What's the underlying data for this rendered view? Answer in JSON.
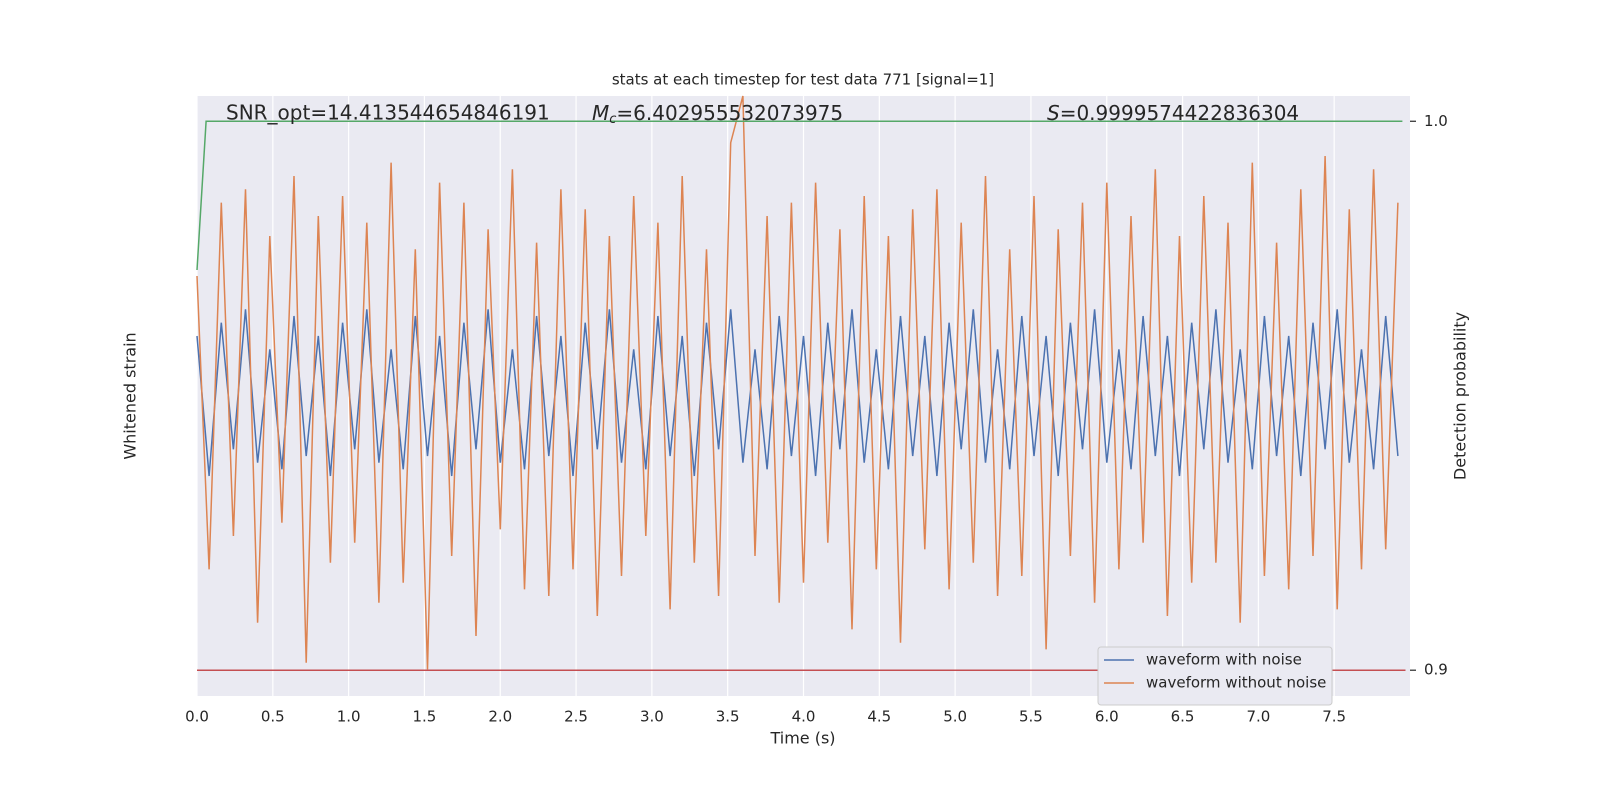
{
  "chart_data": {
    "type": "line",
    "title": "stats at each timestep for test data 771 [signal=1]",
    "xlabel": "Time (s)",
    "ylabel": "Whitened strain",
    "y2label": "Detection probability",
    "annotations": [
      {
        "text": "SNR_opt=14.413544654846191"
      },
      {
        "symbol": "M",
        "subscript": "c",
        "text": "=6.402955532073975"
      },
      {
        "symbol": "S",
        "text": "=0.9999574422836304"
      }
    ],
    "xlim": [
      0,
      8.0
    ],
    "xticks": [
      {
        "value": 0,
        "label": "0.0"
      },
      0.5,
      {
        "value": 1,
        "label": "1.0"
      },
      1.5,
      {
        "value": 2,
        "label": "2.0"
      },
      2.5,
      {
        "value": 3,
        "label": "3.0"
      },
      3.5,
      {
        "value": 4,
        "label": "4.0"
      },
      4.5,
      {
        "value": 5,
        "label": "5.0"
      },
      5.5,
      {
        "value": 6,
        "label": "6.0"
      },
      6.5,
      {
        "value": 7,
        "label": "7.0"
      },
      7.5
    ],
    "ylim": [
      -4.5,
      4.5
    ],
    "y2lim": [
      0.8953,
      1.0046
    ],
    "y2ticks": [
      0.9,
      {
        "value": 1,
        "label": "1.0"
      }
    ],
    "grid": true,
    "legend": "lower right",
    "x": [
      0,
      0.08,
      0.16,
      0.24,
      0.32,
      0.4,
      0.48,
      0.56,
      0.64,
      0.72,
      0.8,
      0.88,
      0.96,
      1.04,
      1.12,
      1.2,
      1.28,
      1.36,
      1.44,
      1.52,
      1.6,
      1.68,
      1.76,
      1.84,
      1.92,
      2.0,
      2.08,
      2.16,
      2.24,
      2.32,
      2.4,
      2.48,
      2.56,
      2.64,
      2.72,
      2.8,
      2.88,
      2.96,
      3.04,
      3.12,
      3.2,
      3.28,
      3.36,
      3.44,
      3.52,
      3.6,
      3.68,
      3.76,
      3.84,
      3.92,
      4.0,
      4.08,
      4.16,
      4.24,
      4.32,
      4.4,
      4.48,
      4.56,
      4.64,
      4.72,
      4.8,
      4.88,
      4.96,
      5.04,
      5.12,
      5.2,
      5.28,
      5.36,
      5.44,
      5.52,
      5.6,
      5.68,
      5.76,
      5.84,
      5.92,
      6.0,
      6.08,
      6.16,
      6.24,
      6.32,
      6.4,
      6.48,
      6.56,
      6.64,
      6.72,
      6.8,
      6.88,
      6.96,
      7.04,
      7.12,
      7.2,
      7.28,
      7.36,
      7.44,
      7.52,
      7.6,
      7.68,
      7.76,
      7.84,
      7.92
    ],
    "series": [
      {
        "name": "waveform with noise",
        "color": "#4c72b0",
        "values": [
          0.9,
          -1.2,
          1.1,
          -0.8,
          1.3,
          -1.0,
          0.7,
          -1.1,
          1.2,
          -0.9,
          0.9,
          -1.2,
          1.1,
          -0.8,
          1.3,
          -1.0,
          0.7,
          -1.1,
          1.2,
          -0.9,
          0.9,
          -1.2,
          1.1,
          -0.8,
          1.3,
          -1.0,
          0.7,
          -1.1,
          1.2,
          -0.9,
          0.9,
          -1.2,
          1.1,
          -0.8,
          1.3,
          -1.0,
          0.7,
          -1.1,
          1.2,
          -0.9,
          0.9,
          -1.2,
          1.1,
          -0.8,
          1.3,
          -1.0,
          0.7,
          -1.1,
          1.2,
          -0.9,
          0.9,
          -1.2,
          1.1,
          -0.8,
          1.3,
          -1.0,
          0.7,
          -1.1,
          1.2,
          -0.9,
          0.9,
          -1.2,
          1.1,
          -0.8,
          1.3,
          -1.0,
          0.7,
          -1.1,
          1.2,
          -0.9,
          0.9,
          -1.2,
          1.1,
          -0.8,
          1.3,
          -1.0,
          0.7,
          -1.1,
          1.2,
          -0.9,
          0.9,
          -1.2,
          1.1,
          -0.8,
          1.3,
          -1.0,
          0.7,
          -1.1,
          1.2,
          -0.9,
          0.9,
          -1.2,
          1.1,
          -0.8,
          1.3,
          -1.0,
          0.7,
          -1.1,
          1.2,
          -0.9
        ]
      },
      {
        "name": "waveform without noise",
        "color": "#dd8452",
        "values": [
          1.8,
          -2.6,
          2.9,
          -2.1,
          3.1,
          -3.4,
          2.4,
          -1.9,
          3.3,
          -4.0,
          2.7,
          -2.5,
          3.0,
          -2.2,
          2.6,
          -3.1,
          3.5,
          -2.8,
          2.2,
          -4.1,
          3.2,
          -2.4,
          2.9,
          -3.6,
          2.5,
          -2.0,
          3.4,
          -2.9,
          2.3,
          -3.0,
          3.1,
          -2.6,
          2.8,
          -3.3,
          2.4,
          -2.7,
          3.0,
          -2.1,
          2.6,
          -3.2,
          3.3,
          -2.5,
          2.2,
          -3.0,
          3.8,
          4.5,
          -2.4,
          2.7,
          -3.1,
          2.9,
          -2.8,
          3.2,
          -2.2,
          2.5,
          -3.5,
          3.0,
          -2.6,
          2.4,
          -3.7,
          2.8,
          -2.3,
          3.1,
          -2.9,
          2.6,
          -2.5,
          3.3,
          -3.0,
          2.2,
          -2.7,
          3.0,
          -3.8,
          2.5,
          -2.4,
          2.9,
          -3.1,
          3.2,
          -2.6,
          2.7,
          -2.2,
          3.4,
          -3.3,
          2.4,
          -2.8,
          3.0,
          -2.5,
          2.6,
          -3.4,
          3.5,
          -2.7,
          2.3,
          -2.9,
          3.1,
          -2.4,
          3.6,
          -3.2,
          2.8,
          -2.6,
          3.4,
          -2.3,
          2.9
        ]
      },
      {
        "color": "#55a868",
        "axis": "y2",
        "x": [
          0,
          0.06,
          7.95
        ],
        "values": [
          0.9729,
          1.0,
          1.0
        ]
      },
      {
        "color": "#c44e52",
        "axis": "y2",
        "x": [
          0,
          7.97
        ],
        "values": [
          0.9,
          0.9
        ]
      }
    ]
  }
}
